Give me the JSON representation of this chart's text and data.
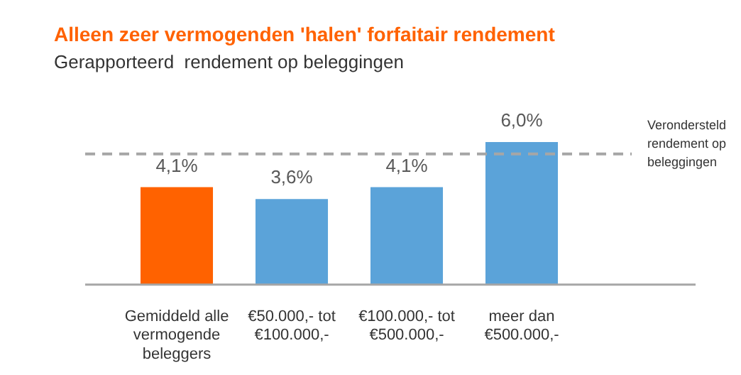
{
  "chart_data": {
    "type": "bar",
    "title": "Alleen zeer vermogenden 'halen' forfaitair rendement",
    "subtitle": "Gerapporteerd  rendement op beleggingen",
    "categories": [
      "Gemiddeld alle vermogende beleggers",
      "€50.000,- tot €100.000,-",
      "€100.000,- tot €500.000,-",
      "meer dan €500.000,-"
    ],
    "values": [
      4.1,
      3.6,
      4.1,
      6.0
    ],
    "colors": [
      "#ff6200",
      "#5ba3d9",
      "#5ba3d9",
      "#5ba3d9"
    ],
    "value_labels": [
      "4,1%",
      "3,6%",
      "4,1%",
      "6,0%"
    ],
    "ref_lines": [
      {
        "axis": "y",
        "value": 5.5,
        "label": "Verondersteld rendement op beleggingen",
        "color": "#a6a6a6",
        "line_style": "dashed"
      }
    ]
  }
}
